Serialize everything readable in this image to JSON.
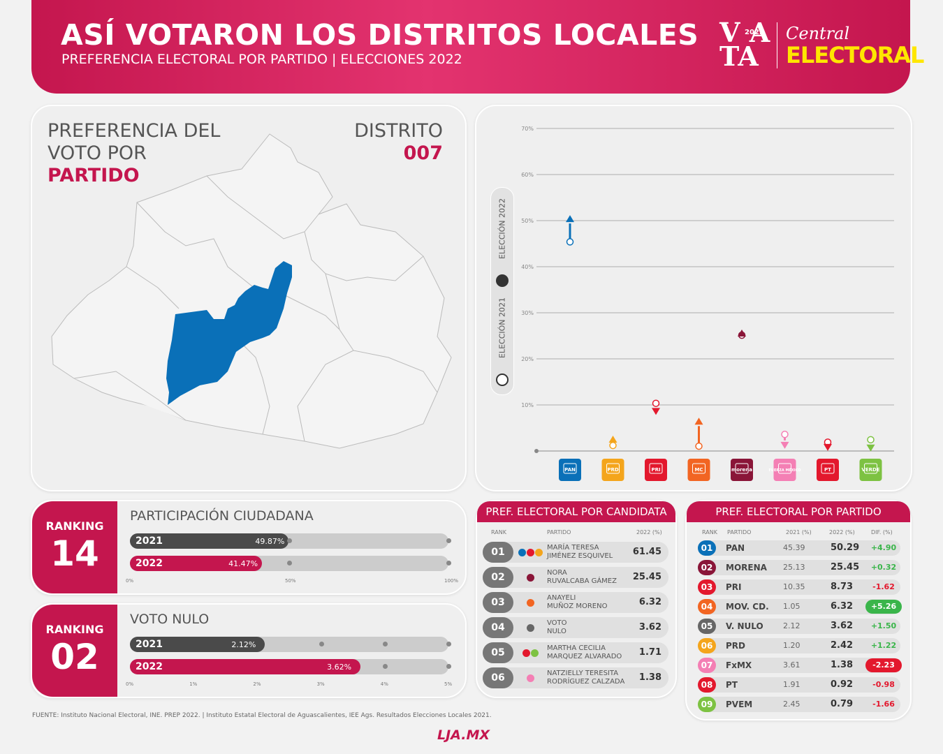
{
  "header": {
    "title": "ASÍ VOTARON LOS DISTRITOS LOCALES",
    "subtitle": "PREFERENCIA ELECTORAL POR PARTIDO | ELECCIONES 2022",
    "logo_vota_top": "V A",
    "logo_vota_bottom": "TA",
    "logo_year": "2022",
    "logo_central": "Central",
    "logo_electoral": "ELECTORAL"
  },
  "map": {
    "title_line1": "PREFERENCIA DEL",
    "title_line2": "VOTO POR",
    "title_line3": "PARTIDO",
    "district_label": "DISTRITO",
    "district_number": "007",
    "highlight_color": "#0a70b8"
  },
  "chart_data": {
    "type": "scatter",
    "ylim": [
      0,
      70
    ],
    "yticks": [
      "10%",
      "20%",
      "30%",
      "40%",
      "50%",
      "60%",
      "70%"
    ],
    "legend": [
      "ELECCIÓN 2021",
      "ELECCIÓN 2022"
    ],
    "parties": [
      {
        "abbr": "PAN",
        "color": "#0a70b8",
        "v2021": 45.39,
        "v2022": 50.29
      },
      {
        "abbr": "PRD",
        "color": "#f4a51c",
        "v2021": 1.2,
        "v2022": 2.42
      },
      {
        "abbr": "PRI",
        "color": "#e3182d",
        "v2021": 10.35,
        "v2022": 8.73
      },
      {
        "abbr": "MC",
        "color": "#f26522",
        "v2021": 1.05,
        "v2022": 6.32
      },
      {
        "abbr": "morena",
        "color": "#8a1538",
        "v2021": 25.13,
        "v2022": 25.45
      },
      {
        "abbr": "FUERZA MÉXICO",
        "color": "#f47fb4",
        "v2021": 3.61,
        "v2022": 1.38
      },
      {
        "abbr": "PT",
        "color": "#e3182d",
        "v2021": 1.91,
        "v2022": 0.92
      },
      {
        "abbr": "VERDE",
        "color": "#7dc242",
        "v2021": 2.45,
        "v2022": 0.79
      }
    ]
  },
  "participacion": {
    "ranking_label": "RANKING",
    "ranking": "14",
    "title": "PARTICIPACIÓN CIUDADANA",
    "rows": [
      {
        "year": "2021",
        "label": "49.87%",
        "value": 49.87,
        "color": "#4a4a4a"
      },
      {
        "year": "2022",
        "label": "41.47%",
        "value": 41.47,
        "color": "#c4164e"
      }
    ],
    "max": 100,
    "ticks": [
      "0%",
      "50%",
      "100%"
    ]
  },
  "nulo": {
    "ranking_label": "RANKING",
    "ranking": "02",
    "title": "VOTO NULO",
    "rows": [
      {
        "year": "2021",
        "label": "2.12%",
        "value": 2.12,
        "color": "#4a4a4a"
      },
      {
        "year": "2022",
        "label": "3.62%",
        "value": 3.62,
        "color": "#c4164e"
      }
    ],
    "max": 5,
    "ticks": [
      "0%",
      "1%",
      "2%",
      "3%",
      "4%",
      "5%"
    ]
  },
  "candidatas": {
    "title": "PREF. ELECTORAL POR CANDIDATA",
    "col_rank": "RANK",
    "col_partido": "PARTIDO",
    "col_2022": "2022 (%)",
    "rows": [
      {
        "rank": "01",
        "name1": "MARÍA TERESA",
        "name2": "JIMÉNEZ ESQUIVEL",
        "value": "61.45",
        "dots": [
          "#0a70b8",
          "#e3182d",
          "#f4a51c"
        ]
      },
      {
        "rank": "02",
        "name1": "NORA",
        "name2": "RUVALCABA GÁMEZ",
        "value": "25.45",
        "dots": [
          "#8a1538"
        ]
      },
      {
        "rank": "03",
        "name1": "ANAYELI",
        "name2": "MUÑOZ MORENO",
        "value": "6.32",
        "dots": [
          "#f26522"
        ]
      },
      {
        "rank": "04",
        "name1": "VOTO",
        "name2": "NULO",
        "value": "3.62",
        "dots": [
          "#666666"
        ]
      },
      {
        "rank": "05",
        "name1": "MARTHA CECILIA",
        "name2": "MARQUEZ ALVARADO",
        "value": "1.71",
        "dots": [
          "#e3182d",
          "#7dc242"
        ]
      },
      {
        "rank": "06",
        "name1": "NATZIELLY TERESITA",
        "name2": "RODRÍGUEZ CALZADA",
        "value": "1.38",
        "dots": [
          "#f47fb4"
        ]
      }
    ]
  },
  "partidos": {
    "title": "PREF. ELECTORAL POR PARTIDO",
    "col_rank": "RANK",
    "col_partido": "PARTIDO",
    "col_2021": "2021 (%)",
    "col_2022": "2022 (%)",
    "col_dif": "DIF. (%)",
    "rows": [
      {
        "rank": "01",
        "party": "PAN",
        "v2021": "45.39",
        "v2022": "50.29",
        "dif": "+4.90",
        "color": "#0a70b8",
        "pos": true,
        "strong": false
      },
      {
        "rank": "02",
        "party": "MORENA",
        "v2021": "25.13",
        "v2022": "25.45",
        "dif": "+0.32",
        "color": "#8a1538",
        "pos": true,
        "strong": false
      },
      {
        "rank": "03",
        "party": "PRI",
        "v2021": "10.35",
        "v2022": "8.73",
        "dif": "-1.62",
        "color": "#e3182d",
        "pos": false,
        "strong": false
      },
      {
        "rank": "04",
        "party": "MOV. CD.",
        "v2021": "1.05",
        "v2022": "6.32",
        "dif": "+5.26",
        "color": "#f26522",
        "pos": true,
        "strong": true
      },
      {
        "rank": "05",
        "party": "V. NULO",
        "v2021": "2.12",
        "v2022": "3.62",
        "dif": "+1.50",
        "color": "#666666",
        "pos": true,
        "strong": false
      },
      {
        "rank": "06",
        "party": "PRD",
        "v2021": "1.20",
        "v2022": "2.42",
        "dif": "+1.22",
        "color": "#f4a51c",
        "pos": true,
        "strong": false
      },
      {
        "rank": "07",
        "party": "FxMX",
        "v2021": "3.61",
        "v2022": "1.38",
        "dif": "-2.23",
        "color": "#f47fb4",
        "pos": false,
        "strong": true
      },
      {
        "rank": "08",
        "party": "PT",
        "v2021": "1.91",
        "v2022": "0.92",
        "dif": "-0.98",
        "color": "#e3182d",
        "pos": false,
        "strong": false
      },
      {
        "rank": "09",
        "party": "PVEM",
        "v2021": "2.45",
        "v2022": "0.79",
        "dif": "-1.66",
        "color": "#7dc242",
        "pos": false,
        "strong": false
      }
    ]
  },
  "footer": {
    "source": "FUENTE: Instituto Nacional Electoral, INE. PREP 2022. | Instituto Estatal Electoral de Aguascalientes, IEE Ags. Resultados Elecciones Locales 2021.",
    "brand": "LJA.MX"
  }
}
